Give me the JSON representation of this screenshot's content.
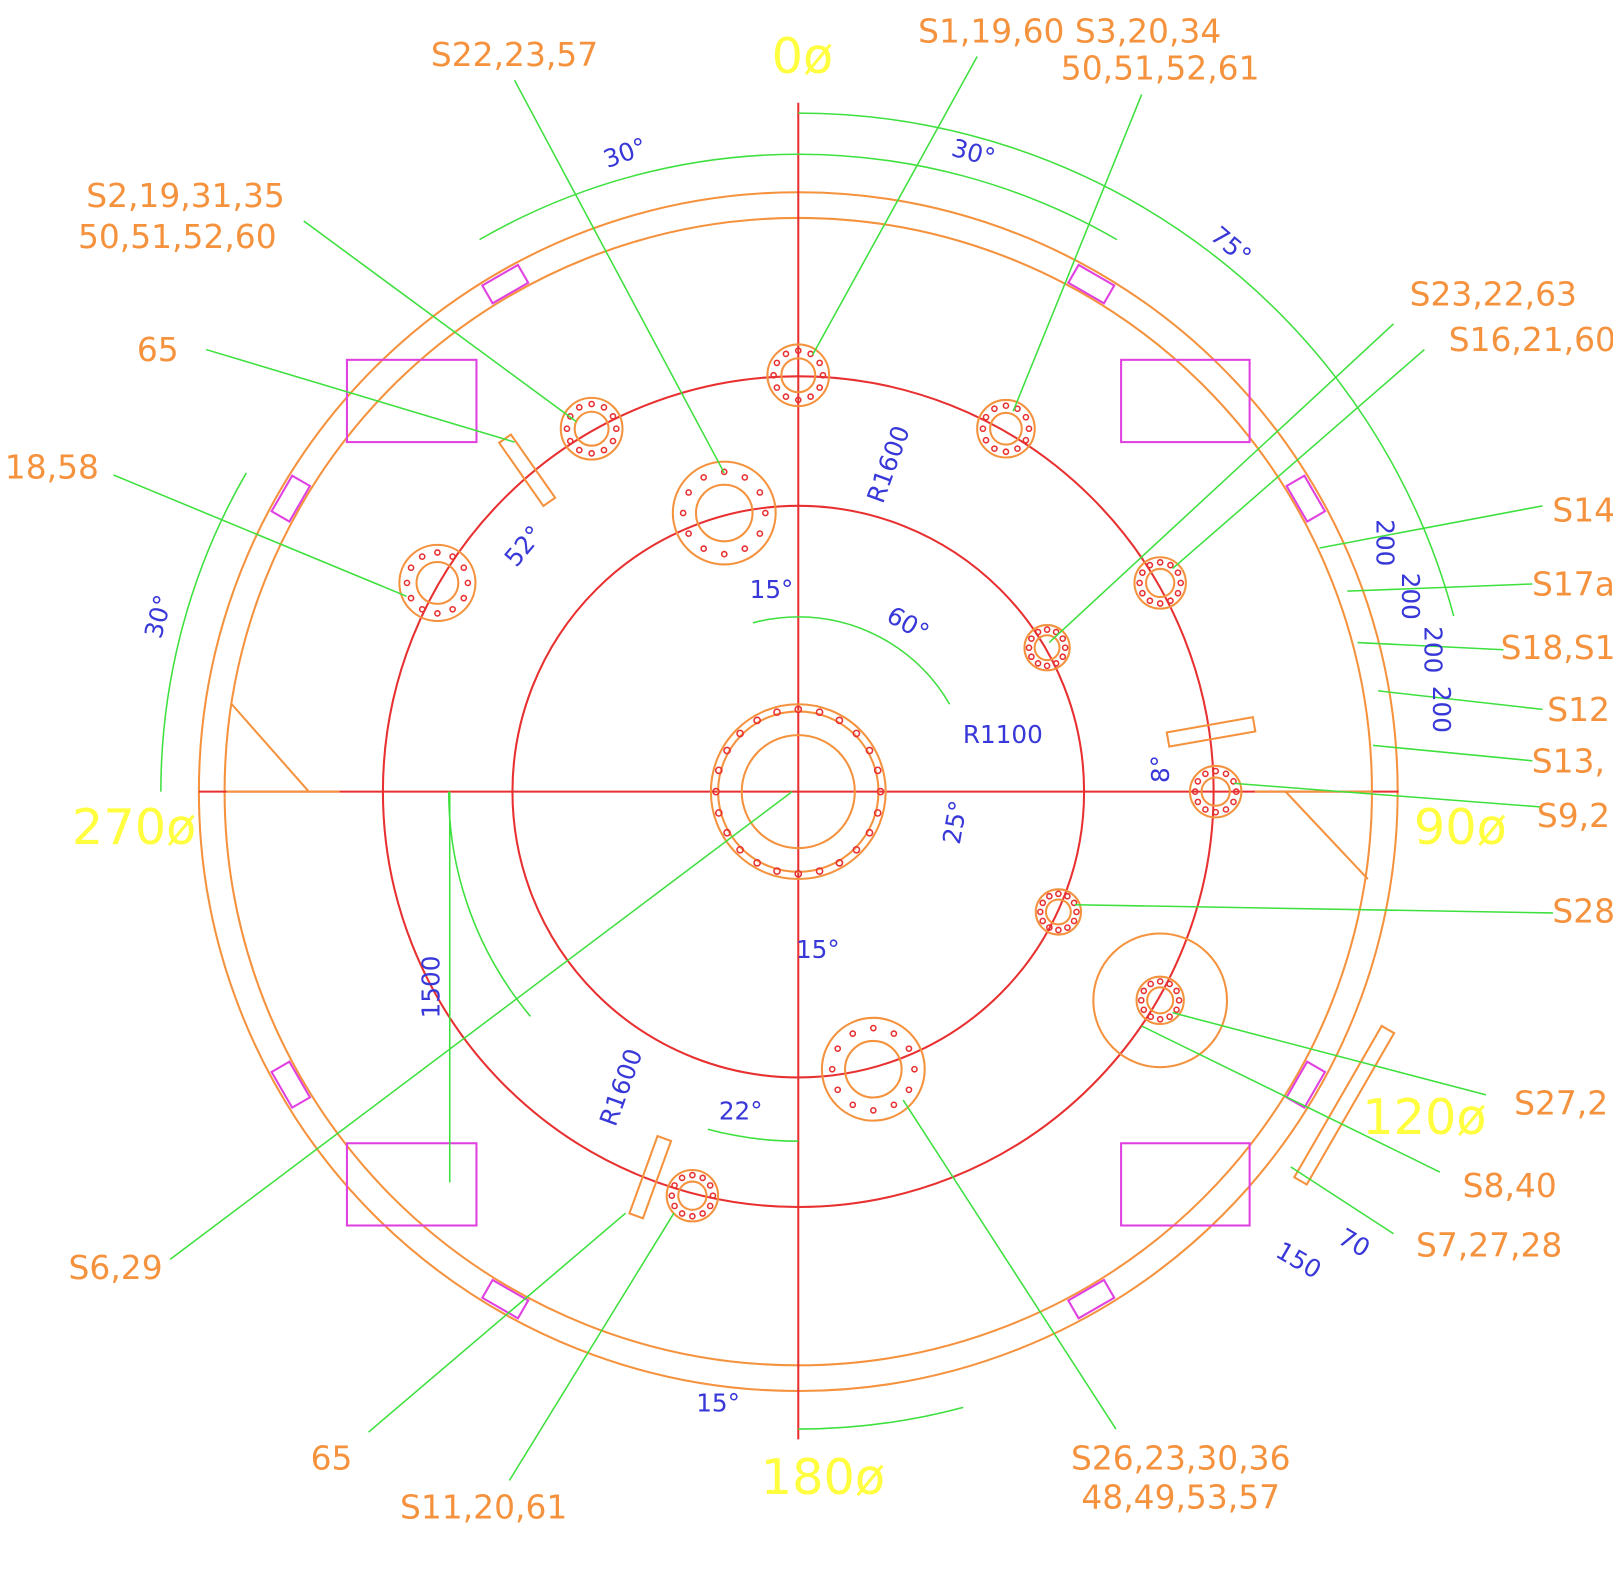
{
  "callouts": [
    "S22,23,57",
    "S1,19,60 S3,20,34",
    "50,51,52,61",
    "S2,19,31,35",
    "50,51,52,60",
    "65",
    "18,58",
    "S23,22,63",
    "S16,21,60",
    "S14",
    "S17a",
    "S18,S1",
    "S12",
    "S13,",
    "S9,2",
    "S28",
    "S27,2",
    "S8,40",
    "S7,27,28",
    "S6,29",
    "65",
    "S11,20,61",
    "S26,23,30,36",
    "48,49,53,57"
  ],
  "orientations": [
    "0ø",
    "270ø",
    "90ø",
    "120ø",
    "180ø"
  ],
  "dimensions": [
    "30°",
    "30°",
    "75°",
    "R1600",
    "52°",
    "30°",
    "15°",
    "60°",
    "R1100",
    "8°",
    "25°",
    "1500",
    "15°",
    "R1600",
    "22°",
    "15°",
    "200",
    "200",
    "200",
    "200",
    "70",
    "150"
  ]
}
